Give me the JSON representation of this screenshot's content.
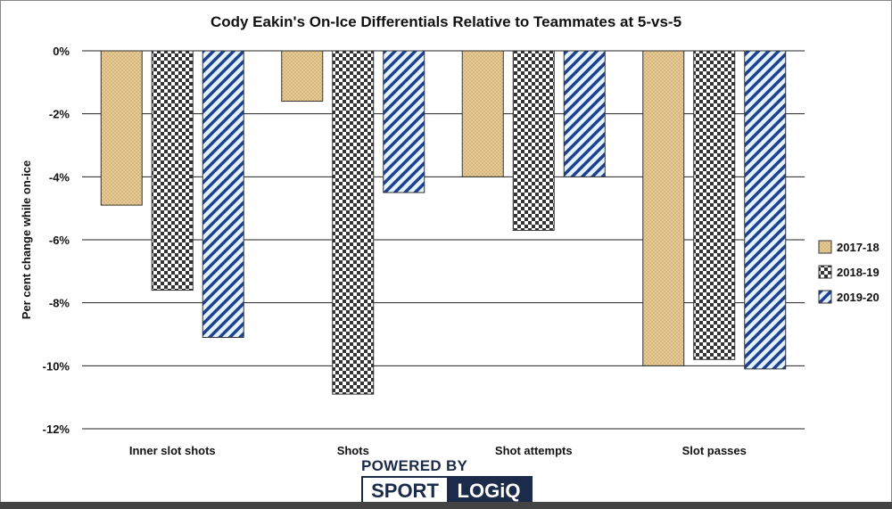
{
  "chart_data": {
    "type": "bar",
    "title": "Cody Eakin's On-Ice Differentials Relative to Teammates at 5-vs-5",
    "xlabel": "",
    "ylabel": "Per cent change while on-ice",
    "ylim": [
      -12,
      0
    ],
    "yticks": [
      0,
      -2,
      -4,
      -6,
      -8,
      -10,
      -12
    ],
    "ytick_labels": [
      "0%",
      "-2%",
      "-4%",
      "-6%",
      "-8%",
      "-10%",
      "-12%"
    ],
    "grid": true,
    "legend_position": "right",
    "categories": [
      "Inner slot shots",
      "Shots",
      "Shot attempts",
      "Slot passes"
    ],
    "series": [
      {
        "name": "2017-18",
        "values": [
          -4.9,
          -1.6,
          -4.0,
          -10.0
        ],
        "color": "#d9b77a"
      },
      {
        "name": "2018-19",
        "values": [
          -7.6,
          -10.9,
          -5.7,
          -9.8
        ],
        "color": "#333333"
      },
      {
        "name": "2019-20",
        "values": [
          -9.1,
          -4.5,
          -4.0,
          -10.1
        ],
        "color": "#1f3f8f"
      }
    ]
  },
  "branding": {
    "powered_by": "POWERED BY",
    "sport": "SPORT",
    "logiq": "LOGiQ"
  }
}
